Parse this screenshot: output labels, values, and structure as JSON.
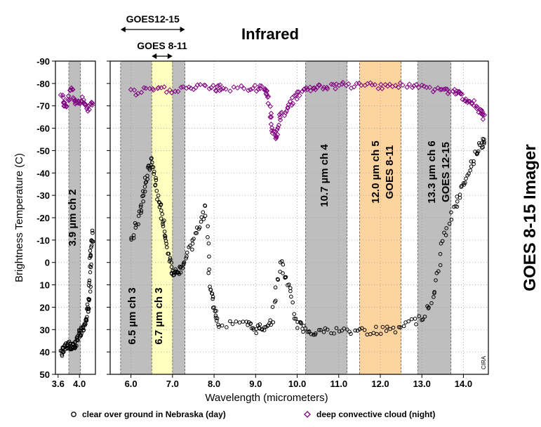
{
  "chart_data": {
    "type": "scatter",
    "title": "Infrared",
    "side_title": "GOES 8-15 Imager",
    "xlabel": "Wavelength (micrometers)",
    "ylabel": "Brightness Temperature (C)",
    "credit": "CIRA",
    "ylim": [
      50,
      -90
    ],
    "y_ticks": [
      50,
      40,
      30,
      20,
      10,
      0,
      -10,
      -20,
      -30,
      -40,
      -50,
      -60,
      -70,
      -80,
      -90
    ],
    "y_tick_labels": [
      "50",
      "40",
      "30",
      "20",
      "10",
      "0",
      "-10",
      "-20",
      "-30",
      "-40",
      "-50",
      "-60",
      "-70",
      "-80",
      "-90"
    ],
    "grid": true,
    "left_panel": {
      "xlim": [
        3.55,
        4.3
      ],
      "x_ticks": [
        3.6,
        4.0
      ],
      "x_tick_labels": [
        "3.6",
        "4.0"
      ]
    },
    "right_panel": {
      "xlim": [
        5.5,
        14.6
      ],
      "x_ticks": [
        6.0,
        7.0,
        8.0,
        9.0,
        10.0,
        11.0,
        12.0,
        13.0,
        14.0
      ],
      "x_tick_labels": [
        "6.0",
        "7.0",
        "8.0",
        "9.0",
        "10.0",
        "11.0",
        "12.0",
        "13.0",
        "14.0"
      ]
    },
    "bands": [
      {
        "label": "3.9 µm  ch 2",
        "x_start": 3.8,
        "x_end": 4.02,
        "color": "#bebebe"
      },
      {
        "label": "6.5 µm  ch 3",
        "x_start": 5.75,
        "x_end": 7.3,
        "color": "#bebebe"
      },
      {
        "label": "6.7 µm  ch 3",
        "x_start": 6.5,
        "x_end": 7.0,
        "color": "#ffffc0"
      },
      {
        "label": "10.7 µm  ch 4",
        "x_start": 10.2,
        "x_end": 11.2,
        "color": "#bebebe"
      },
      {
        "label": "12.0 µm  ch 5",
        "label2": "GOES 8-11",
        "x_start": 11.5,
        "x_end": 12.5,
        "color": "#fdd49e"
      },
      {
        "label": "13.3 µm  ch 6",
        "label2": "GOES 12-15",
        "x_start": 12.9,
        "x_end": 13.7,
        "color": "#bebebe"
      }
    ],
    "range_annotations": [
      {
        "label": "GOES12-15",
        "x_start": 5.75,
        "x_end": 7.3
      },
      {
        "label": "GOES 8-11",
        "x_start": 6.5,
        "x_end": 7.0
      }
    ],
    "series": [
      {
        "name": "clear over ground in Nebraska (day)",
        "marker": "circle",
        "color": "#000000",
        "points": [
          [
            3.66,
            40
          ],
          [
            3.7,
            39
          ],
          [
            3.75,
            38
          ],
          [
            3.8,
            37
          ],
          [
            3.85,
            37
          ],
          [
            3.9,
            37
          ],
          [
            3.95,
            36
          ],
          [
            4.0,
            32
          ],
          [
            4.05,
            31
          ],
          [
            4.1,
            27
          ],
          [
            4.15,
            22
          ],
          [
            4.18,
            18
          ],
          [
            4.2,
            5
          ],
          [
            4.22,
            -6
          ],
          [
            4.25,
            -13
          ],
          [
            6.0,
            -10
          ],
          [
            6.2,
            -20
          ],
          [
            6.3,
            -30
          ],
          [
            6.4,
            -40
          ],
          [
            6.5,
            -45
          ],
          [
            6.6,
            -35
          ],
          [
            6.7,
            -25
          ],
          [
            6.8,
            -15
          ],
          [
            6.9,
            -5
          ],
          [
            7.0,
            5
          ],
          [
            7.1,
            5
          ],
          [
            7.2,
            3
          ],
          [
            7.4,
            -5
          ],
          [
            7.6,
            -15
          ],
          [
            7.8,
            -25
          ],
          [
            7.9,
            10
          ],
          [
            8.0,
            20
          ],
          [
            8.1,
            28
          ],
          [
            8.8,
            28
          ],
          [
            9.0,
            30
          ],
          [
            9.2,
            29
          ],
          [
            9.4,
            25
          ],
          [
            9.6,
            0
          ],
          [
            9.8,
            10
          ],
          [
            10.0,
            28
          ],
          [
            10.2,
            30
          ],
          [
            10.5,
            31
          ],
          [
            11.0,
            31
          ],
          [
            11.5,
            31
          ],
          [
            12.0,
            30
          ],
          [
            12.5,
            29
          ],
          [
            13.0,
            25
          ],
          [
            13.3,
            15
          ],
          [
            13.5,
            -10
          ],
          [
            13.8,
            -25
          ],
          [
            14.0,
            -35
          ],
          [
            14.2,
            -45
          ],
          [
            14.4,
            -52
          ],
          [
            14.5,
            -55
          ]
        ]
      },
      {
        "name": "deep convective  cloud (night)",
        "marker": "diamond",
        "color": "#800080",
        "points": [
          [
            3.66,
            -75
          ],
          [
            3.75,
            -70
          ],
          [
            3.85,
            -78
          ],
          [
            3.95,
            -70
          ],
          [
            4.05,
            -73
          ],
          [
            4.15,
            -68
          ],
          [
            4.25,
            -72
          ],
          [
            6.0,
            -76
          ],
          [
            6.5,
            -77
          ],
          [
            7.0,
            -77
          ],
          [
            7.5,
            -78
          ],
          [
            8.0,
            -78
          ],
          [
            8.2,
            -78
          ],
          [
            8.9,
            -78
          ],
          [
            9.2,
            -78
          ],
          [
            9.3,
            -75
          ],
          [
            9.4,
            -60
          ],
          [
            9.5,
            -55
          ],
          [
            9.6,
            -65
          ],
          [
            9.8,
            -70
          ],
          [
            10.0,
            -75
          ],
          [
            10.3,
            -78
          ],
          [
            10.6,
            -79
          ],
          [
            11.0,
            -79
          ],
          [
            11.5,
            -79
          ],
          [
            12.0,
            -79
          ],
          [
            12.5,
            -79
          ],
          [
            13.0,
            -78
          ],
          [
            13.5,
            -77
          ],
          [
            13.8,
            -76
          ],
          [
            14.0,
            -74
          ],
          [
            14.2,
            -72
          ],
          [
            14.4,
            -68
          ],
          [
            14.5,
            -65
          ]
        ]
      }
    ],
    "legend_position": "bottom"
  }
}
